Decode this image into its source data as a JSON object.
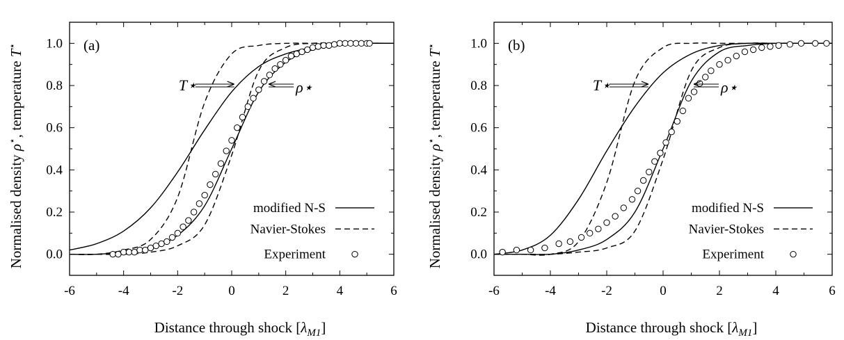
{
  "figure": {
    "ylabel_prefix": "Normalised density ",
    "ylabel_rho": "ρ",
    "ylabel_mid": ", temperature ",
    "ylabel_T": "T",
    "star": "⋆",
    "xlabel_prefix": "Distance through shock [",
    "xlabel_lambda": "λ",
    "xlabel_sub": "M1",
    "xlabel_suffix": "]"
  },
  "chart_data": [
    {
      "type": "line",
      "panel_label": "(a)",
      "xlabel": "Distance through shock [λM1]",
      "ylabel": "Normalised density ρ⋆, temperature T⋆",
      "xlim": [
        -6,
        6
      ],
      "ylim": [
        -0.1,
        1.1
      ],
      "xticks": [
        "-6",
        "-4",
        "-2",
        "0",
        "2",
        "4",
        "6"
      ],
      "yticks": [
        "0.0",
        "0.2",
        "0.4",
        "0.6",
        "0.8",
        "1.0"
      ],
      "legend": [
        "modified N-S",
        "Navier-Stokes",
        "Experiment"
      ],
      "legend_position": "bottom-right",
      "annotations": {
        "T_label": "T⋆",
        "rho_label": "ρ⋆"
      },
      "series": [
        {
          "name": "modified N-S",
          "curve": "T",
          "style": "solid",
          "x": [
            -6,
            -5,
            -4,
            -3,
            -2,
            -1,
            0,
            1,
            2,
            3,
            4,
            5,
            6
          ],
          "y": [
            0.02,
            0.05,
            0.11,
            0.22,
            0.39,
            0.59,
            0.77,
            0.89,
            0.95,
            0.98,
            0.995,
            1.0,
            1.0
          ]
        },
        {
          "name": "modified N-S",
          "curve": "rho",
          "style": "solid",
          "x": [
            -6,
            -5,
            -4,
            -3,
            -2,
            -1,
            0,
            1,
            2,
            3,
            4,
            5,
            6
          ],
          "y": [
            0.0,
            0.0,
            0.01,
            0.03,
            0.09,
            0.23,
            0.5,
            0.77,
            0.91,
            0.97,
            0.99,
            1.0,
            1.0
          ]
        },
        {
          "name": "Navier-Stokes",
          "curve": "T",
          "style": "dashed",
          "x": [
            -6,
            -5,
            -4,
            -3,
            -2,
            -1,
            0,
            1,
            2,
            3,
            4,
            5,
            6
          ],
          "y": [
            0.0,
            0.0,
            0.02,
            0.07,
            0.27,
            0.72,
            0.95,
            0.99,
            1.0,
            1.0,
            1.0,
            1.0,
            1.0
          ]
        },
        {
          "name": "Navier-Stokes",
          "curve": "rho",
          "style": "dashed",
          "x": [
            -6,
            -5,
            -4,
            -3,
            -2,
            -1,
            0,
            1,
            2,
            3,
            4,
            5,
            6
          ],
          "y": [
            0.0,
            0.0,
            0.0,
            0.01,
            0.04,
            0.14,
            0.47,
            0.87,
            0.98,
            1.0,
            1.0,
            1.0,
            1.0
          ]
        },
        {
          "name": "Experiment",
          "curve": "rho",
          "style": "circles",
          "x": [
            -4.4,
            -4.2,
            -4.0,
            -3.8,
            -3.6,
            -3.4,
            -3.2,
            -3.0,
            -2.8,
            -2.6,
            -2.4,
            -2.2,
            -2.0,
            -1.8,
            -1.6,
            -1.4,
            -1.2,
            -1.0,
            -0.8,
            -0.6,
            -0.4,
            -0.2,
            0.0,
            0.2,
            0.4,
            0.6,
            0.8,
            1.0,
            1.2,
            1.4,
            1.6,
            1.8,
            2.0,
            2.2,
            2.4,
            2.6,
            2.8,
            3.0,
            3.2,
            3.4,
            3.6,
            3.8,
            4.0,
            4.2,
            4.4,
            4.6,
            4.8,
            5.0,
            5.1
          ],
          "y": [
            0.0,
            0.0,
            0.01,
            0.01,
            0.01,
            0.02,
            0.02,
            0.03,
            0.04,
            0.05,
            0.06,
            0.08,
            0.1,
            0.13,
            0.16,
            0.2,
            0.24,
            0.28,
            0.33,
            0.38,
            0.43,
            0.49,
            0.54,
            0.6,
            0.65,
            0.7,
            0.74,
            0.78,
            0.82,
            0.85,
            0.88,
            0.9,
            0.92,
            0.94,
            0.95,
            0.96,
            0.97,
            0.98,
            0.985,
            0.99,
            0.99,
            0.995,
            1.0,
            1.0,
            1.0,
            1.0,
            1.0,
            1.0,
            1.0
          ]
        }
      ]
    },
    {
      "type": "line",
      "panel_label": "(b)",
      "xlabel": "Distance through shock [λM1]",
      "ylabel": "Normalised density ρ⋆, temperature T⋆",
      "xlim": [
        -6,
        6
      ],
      "ylim": [
        -0.1,
        1.1
      ],
      "xticks": [
        "-6",
        "-4",
        "-2",
        "0",
        "2",
        "4",
        "6"
      ],
      "yticks": [
        "0.0",
        "0.2",
        "0.4",
        "0.6",
        "0.8",
        "1.0"
      ],
      "legend": [
        "modified N-S",
        "Navier-Stokes",
        "Experiment"
      ],
      "legend_position": "bottom-right",
      "annotations": {
        "T_label": "T⋆",
        "rho_label": "ρ⋆"
      },
      "series": [
        {
          "name": "modified N-S",
          "curve": "T",
          "style": "solid",
          "x": [
            -6,
            -5,
            -4,
            -3,
            -2,
            -1,
            0,
            1,
            2,
            3,
            4,
            5,
            6
          ],
          "y": [
            0.0,
            0.02,
            0.09,
            0.26,
            0.49,
            0.7,
            0.86,
            0.95,
            0.99,
            1.0,
            1.0,
            1.0,
            1.0
          ]
        },
        {
          "name": "modified N-S",
          "curve": "rho",
          "style": "solid",
          "x": [
            -6,
            -5,
            -4,
            -3,
            -2,
            -1,
            0,
            1,
            2,
            3,
            4,
            5,
            6
          ],
          "y": [
            0.0,
            0.0,
            0.0,
            0.02,
            0.07,
            0.2,
            0.5,
            0.82,
            0.96,
            0.99,
            1.0,
            1.0,
            1.0
          ]
        },
        {
          "name": "Navier-Stokes",
          "curve": "T",
          "style": "dashed",
          "x": [
            -6,
            -5,
            -4,
            -3,
            -2,
            -1,
            0,
            1,
            2,
            3,
            4,
            5,
            6
          ],
          "y": [
            0.0,
            0.0,
            0.0,
            0.06,
            0.34,
            0.82,
            0.98,
            1.0,
            1.0,
            1.0,
            1.0,
            1.0,
            1.0
          ]
        },
        {
          "name": "Navier-Stokes",
          "curve": "rho",
          "style": "dashed",
          "x": [
            -6,
            -5,
            -4,
            -3,
            -2,
            -1,
            0,
            1,
            2,
            3,
            4,
            5,
            6
          ],
          "y": [
            0.0,
            0.0,
            0.0,
            0.01,
            0.03,
            0.11,
            0.45,
            0.87,
            0.98,
            1.0,
            1.0,
            1.0,
            1.0
          ]
        },
        {
          "name": "Experiment",
          "curve": "rho",
          "style": "circles",
          "x": [
            -5.7,
            -5.2,
            -4.7,
            -4.2,
            -3.7,
            -3.3,
            -2.9,
            -2.6,
            -2.3,
            -2.0,
            -1.7,
            -1.4,
            -1.1,
            -0.9,
            -0.7,
            -0.5,
            -0.3,
            -0.1,
            0.1,
            0.3,
            0.5,
            0.7,
            0.9,
            1.1,
            1.3,
            1.5,
            1.7,
            2.0,
            2.3,
            2.6,
            2.9,
            3.2,
            3.5,
            3.8,
            4.1,
            4.5,
            4.9,
            5.4,
            5.8
          ],
          "y": [
            0.01,
            0.02,
            0.02,
            0.03,
            0.05,
            0.06,
            0.08,
            0.1,
            0.12,
            0.15,
            0.18,
            0.22,
            0.26,
            0.3,
            0.35,
            0.39,
            0.44,
            0.48,
            0.53,
            0.58,
            0.63,
            0.68,
            0.74,
            0.77,
            0.81,
            0.84,
            0.87,
            0.9,
            0.92,
            0.94,
            0.96,
            0.97,
            0.98,
            0.985,
            0.99,
            0.995,
            1.0,
            1.0,
            1.0
          ]
        }
      ]
    }
  ]
}
